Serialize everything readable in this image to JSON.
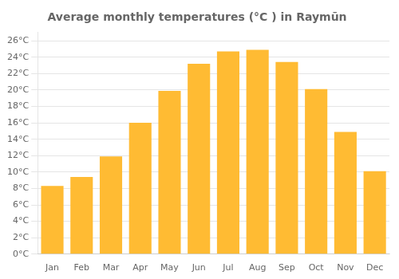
{
  "chart_data": {
    "type": "bar",
    "title": "Average monthly temperatures (°C ) in Raymūn",
    "categories": [
      "Jan",
      "Feb",
      "Mar",
      "Apr",
      "May",
      "Jun",
      "Jul",
      "Aug",
      "Sep",
      "Oct",
      "Nov",
      "Dec"
    ],
    "values": [
      8.3,
      9.4,
      11.9,
      16.0,
      19.9,
      23.2,
      24.7,
      24.9,
      23.4,
      20.1,
      14.9,
      10.1
    ],
    "color": "#FFBB33",
    "ylim": [
      0,
      27
    ],
    "yticks": [
      {
        "value": 0,
        "label": "0°C"
      },
      {
        "value": 2,
        "label": "2°C"
      },
      {
        "value": 4,
        "label": "4°C"
      },
      {
        "value": 6,
        "label": "6°C"
      },
      {
        "value": 8,
        "label": "8°C"
      },
      {
        "value": 10,
        "label": "10°C"
      },
      {
        "value": 12,
        "label": "12°C"
      },
      {
        "value": 14,
        "label": "14°C"
      },
      {
        "value": 16,
        "label": "16°C"
      },
      {
        "value": 18,
        "label": "18°C"
      },
      {
        "value": 20,
        "label": "20°C"
      },
      {
        "value": 22,
        "label": "22°C"
      },
      {
        "value": 24,
        "label": "24°C"
      },
      {
        "value": 26,
        "label": "26°C"
      }
    ],
    "grid": true
  }
}
